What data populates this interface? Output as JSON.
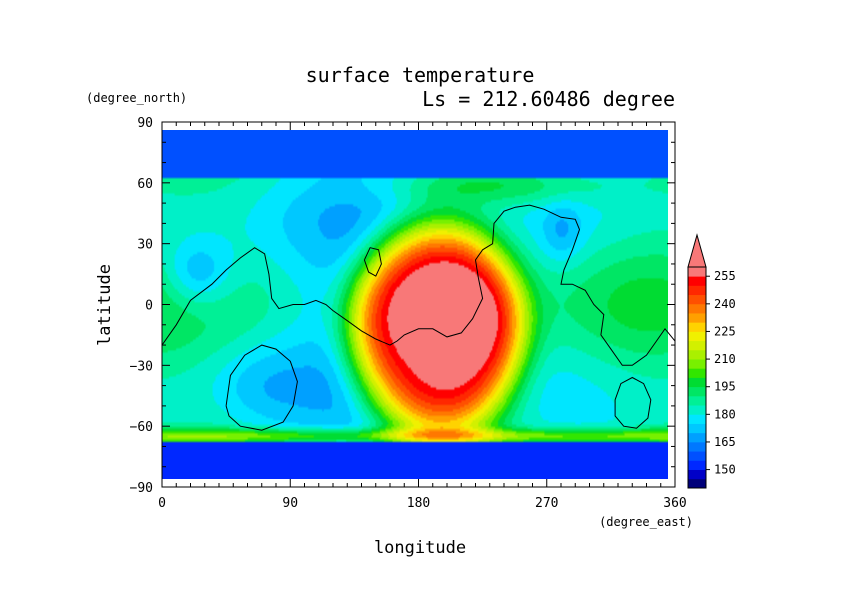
{
  "chart_data": {
    "type": "heatmap",
    "title": "surface temperature",
    "subtitle": "Ls = 212.60486 degree",
    "xlabel": "longitude",
    "ylabel": "latitude",
    "x_units": "(degree_east)",
    "y_units": "(degree_north)",
    "xlim": [
      0,
      360
    ],
    "ylim": [
      -90,
      90
    ],
    "x_ticks": [
      {
        "value": 0,
        "label": "0"
      },
      {
        "value": 90,
        "label": "90"
      },
      {
        "value": 180,
        "label": "180"
      },
      {
        "value": 270,
        "label": "270"
      },
      {
        "value": 360,
        "label": "360"
      }
    ],
    "y_ticks": [
      {
        "value": 90,
        "label": "90"
      },
      {
        "value": 60,
        "label": "60"
      },
      {
        "value": 30,
        "label": "30"
      },
      {
        "value": 0,
        "label": "0"
      },
      {
        "value": -30,
        "label": "−30"
      },
      {
        "value": -60,
        "label": "−60"
      },
      {
        "value": -90,
        "label": "−90"
      }
    ],
    "colorbar": {
      "levels": [
        140,
        145,
        150,
        155,
        160,
        165,
        170,
        175,
        180,
        185,
        190,
        195,
        200,
        205,
        210,
        215,
        220,
        225,
        230,
        235,
        240,
        245,
        250,
        255,
        260
      ],
      "colors": [
        "#00007a",
        "#0000c8",
        "#0028ff",
        "#0050ff",
        "#0078ff",
        "#00a0ff",
        "#00c8ff",
        "#00e6ff",
        "#00f0c8",
        "#00f096",
        "#00e664",
        "#00dc32",
        "#32e600",
        "#78f000",
        "#aaf000",
        "#d2f000",
        "#f0f000",
        "#ffd200",
        "#ffa000",
        "#ff7800",
        "#ff5000",
        "#ff2800",
        "#ff0000",
        "#f87878"
      ],
      "over_color": "#f87878",
      "tick_labels": [
        {
          "value": 150,
          "label": "150"
        },
        {
          "value": 165,
          "label": "165"
        },
        {
          "value": 180,
          "label": "180"
        },
        {
          "value": 195,
          "label": "195"
        },
        {
          "value": 210,
          "label": "210"
        },
        {
          "value": 225,
          "label": "225"
        },
        {
          "value": 240,
          "label": "240"
        },
        {
          "value": 255,
          "label": "255"
        }
      ]
    },
    "field_features": [
      {
        "name": "warm-core",
        "lon": 195,
        "lat": -12,
        "peak_temp": 262
      },
      {
        "name": "north-cold-cap",
        "lat_range": [
          62,
          85
        ],
        "temp": 155
      },
      {
        "name": "south-cold-cap",
        "lat_range": [
          -85,
          -67
        ],
        "temp": 150
      },
      {
        "name": "south-edge-ridge",
        "lat": -64,
        "temp": 205
      },
      {
        "name": "eastern-plateau",
        "lon": 330,
        "lat": 0,
        "temp": 200
      }
    ],
    "contours": [
      {
        "name": "dichotomy-boundary",
        "points": [
          [
            0,
            -20
          ],
          [
            10,
            -10
          ],
          [
            20,
            2
          ],
          [
            35,
            10
          ],
          [
            45,
            17
          ],
          [
            55,
            23
          ],
          [
            65,
            28
          ],
          [
            72,
            25
          ],
          [
            75,
            15
          ],
          [
            77,
            3
          ],
          [
            82,
            -2
          ],
          [
            92,
            0
          ],
          [
            100,
            0
          ],
          [
            108,
            2
          ],
          [
            115,
            0
          ],
          [
            120,
            -3
          ],
          [
            130,
            -8
          ],
          [
            140,
            -13
          ],
          [
            150,
            -17
          ],
          [
            160,
            -20
          ],
          [
            165,
            -18
          ],
          [
            170,
            -15
          ],
          [
            180,
            -12
          ],
          [
            190,
            -12
          ],
          [
            200,
            -16
          ],
          [
            210,
            -14
          ],
          [
            218,
            -7
          ],
          [
            225,
            3
          ],
          [
            222,
            13
          ],
          [
            220,
            22
          ],
          [
            225,
            27
          ],
          [
            232,
            30
          ],
          [
            233,
            40
          ],
          [
            240,
            46
          ],
          [
            248,
            48
          ],
          [
            258,
            49
          ],
          [
            268,
            47
          ],
          [
            280,
            43
          ],
          [
            290,
            42
          ],
          [
            293,
            37
          ],
          [
            288,
            27
          ],
          [
            282,
            17
          ],
          [
            280,
            10
          ],
          [
            288,
            10
          ],
          [
            297,
            7
          ],
          [
            303,
            0
          ],
          [
            310,
            -5
          ],
          [
            308,
            -15
          ],
          [
            315,
            -22
          ],
          [
            323,
            -30
          ],
          [
            330,
            -30
          ],
          [
            340,
            -25
          ],
          [
            347,
            -18
          ],
          [
            353,
            -12
          ],
          [
            360,
            -18
          ]
        ]
      },
      {
        "name": "hellas-basin",
        "points": [
          [
            45,
            -50
          ],
          [
            48,
            -35
          ],
          [
            58,
            -25
          ],
          [
            70,
            -20
          ],
          [
            80,
            -22
          ],
          [
            90,
            -28
          ],
          [
            95,
            -38
          ],
          [
            92,
            -50
          ],
          [
            85,
            -58
          ],
          [
            70,
            -62
          ],
          [
            55,
            -60
          ],
          [
            47,
            -55
          ],
          [
            45,
            -50
          ]
        ]
      },
      {
        "name": "argyre-basin",
        "points": [
          [
            318,
            -47
          ],
          [
            322,
            -39
          ],
          [
            330,
            -36
          ],
          [
            338,
            -39
          ],
          [
            343,
            -47
          ],
          [
            341,
            -56
          ],
          [
            333,
            -61
          ],
          [
            324,
            -60
          ],
          [
            318,
            -55
          ],
          [
            318,
            -47
          ]
        ]
      },
      {
        "name": "elysium-rise",
        "points": [
          [
            142,
            22
          ],
          [
            146,
            28
          ],
          [
            152,
            27
          ],
          [
            154,
            20
          ],
          [
            150,
            14
          ],
          [
            145,
            16
          ],
          [
            142,
            22
          ]
        ]
      }
    ]
  }
}
